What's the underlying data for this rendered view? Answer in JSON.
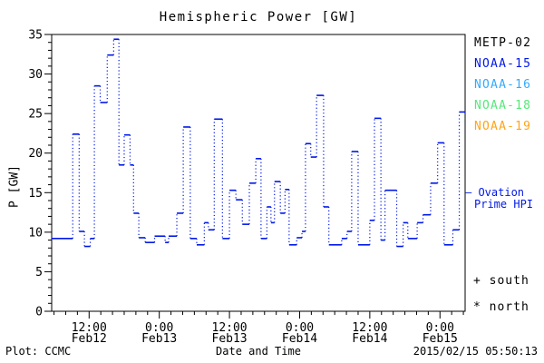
{
  "title": "Hemispheric Power [GW]",
  "ylabel": "P [GW]",
  "xlabel": "Date and Time",
  "footer": {
    "plot_credit": "Plot: CCMC",
    "timestamp": "2015/02/15 05:50:13"
  },
  "legend": {
    "satellites": [
      {
        "label": "METP-02",
        "color": "#000000"
      },
      {
        "label": "NOAA-15",
        "color": "#0018e8"
      },
      {
        "label": "NOAA-16",
        "color": "#33aaff"
      },
      {
        "label": "NOAA-18",
        "color": "#55e87a"
      },
      {
        "label": "NOAA-19",
        "color": "#ffa519"
      }
    ],
    "ovation_line1": "— Ovation",
    "ovation_line2": "Prime HPI",
    "ovation_color": "#0018e8",
    "south_marker": "+ south",
    "north_marker": "* north"
  },
  "chart_data": {
    "type": "line",
    "style": "stepped; solid horizontal value segments joined by dotted vertical connectors",
    "line_color": "#0018e8",
    "title": "Hemispheric Power [GW]",
    "xlabel": "Date and Time",
    "ylabel": "P [GW]",
    "ylim": [
      0,
      35
    ],
    "y_major_ticks": [
      0,
      5,
      10,
      15,
      20,
      25,
      30,
      35
    ],
    "y_minor_step_gw": 1,
    "xlim_hours": [
      5.6,
      76.3
    ],
    "x_hours_reference": "hours since 2015 Feb 12 00:00 UT",
    "x_major_step_hours": 12,
    "x_minor_step_hours": 2,
    "x_ticks": [
      {
        "time": "12:00",
        "date": "Feb12",
        "hour": 12
      },
      {
        "time": "0:00",
        "date": "Feb13",
        "hour": 24
      },
      {
        "time": "12:00",
        "date": "Feb13",
        "hour": 36
      },
      {
        "time": "0:00",
        "date": "Feb14",
        "hour": 48
      },
      {
        "time": "12:00",
        "date": "Feb14",
        "hour": 60
      },
      {
        "time": "0:00",
        "date": "Feb15",
        "hour": 72
      }
    ],
    "grid": false,
    "segments_format": "[start_hour, hemispheric_power_GW]; each value holds until next start",
    "segments": [
      [
        5.6,
        9.2
      ],
      [
        9.2,
        22.4
      ],
      [
        10.3,
        10.1
      ],
      [
        11.2,
        8.2
      ],
      [
        12.2,
        9.2
      ],
      [
        12.9,
        28.5
      ],
      [
        13.9,
        26.4
      ],
      [
        15.1,
        32.4
      ],
      [
        16.2,
        34.4
      ],
      [
        17.1,
        18.5
      ],
      [
        18.0,
        22.3
      ],
      [
        19.0,
        18.5
      ],
      [
        19.6,
        12.4
      ],
      [
        20.5,
        9.3
      ],
      [
        21.6,
        8.7
      ],
      [
        23.2,
        9.5
      ],
      [
        25.0,
        8.7
      ],
      [
        25.6,
        9.5
      ],
      [
        27.0,
        12.4
      ],
      [
        28.1,
        23.3
      ],
      [
        29.3,
        9.2
      ],
      [
        30.4,
        8.4
      ],
      [
        31.7,
        11.2
      ],
      [
        32.4,
        10.3
      ],
      [
        33.4,
        24.3
      ],
      [
        34.8,
        9.2
      ],
      [
        36.0,
        15.3
      ],
      [
        37.1,
        14.1
      ],
      [
        38.2,
        11.0
      ],
      [
        39.4,
        16.2
      ],
      [
        40.5,
        19.3
      ],
      [
        41.4,
        9.2
      ],
      [
        42.4,
        13.2
      ],
      [
        43.1,
        11.2
      ],
      [
        43.7,
        16.4
      ],
      [
        44.7,
        12.4
      ],
      [
        45.5,
        15.4
      ],
      [
        46.2,
        8.4
      ],
      [
        47.5,
        9.3
      ],
      [
        48.4,
        10.1
      ],
      [
        49.0,
        21.2
      ],
      [
        49.9,
        19.5
      ],
      [
        50.9,
        27.3
      ],
      [
        52.1,
        13.2
      ],
      [
        53.0,
        8.4
      ],
      [
        55.2,
        9.2
      ],
      [
        56.1,
        10.1
      ],
      [
        56.9,
        20.2
      ],
      [
        58.0,
        8.4
      ],
      [
        60.0,
        11.5
      ],
      [
        60.8,
        24.4
      ],
      [
        61.9,
        9.0
      ],
      [
        62.6,
        15.3
      ],
      [
        64.6,
        8.2
      ],
      [
        65.7,
        11.2
      ],
      [
        66.5,
        9.2
      ],
      [
        68.1,
        11.2
      ],
      [
        69.1,
        12.2
      ],
      [
        70.4,
        16.2
      ],
      [
        71.6,
        21.3
      ],
      [
        72.7,
        8.4
      ],
      [
        74.2,
        10.3
      ],
      [
        75.3,
        25.2
      ]
    ]
  }
}
